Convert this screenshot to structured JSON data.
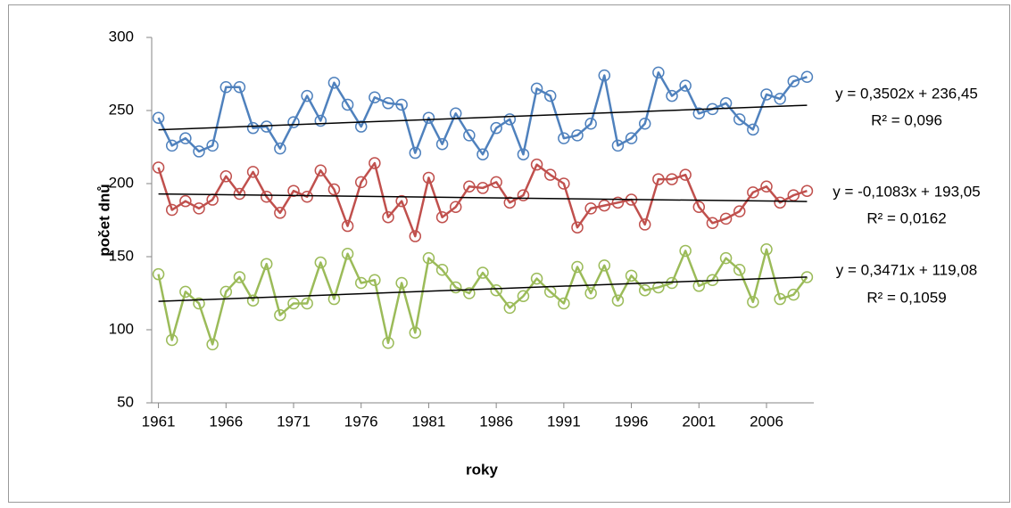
{
  "chart_data": {
    "type": "line",
    "xlabel": "roky",
    "ylabel": "počet dnů",
    "x": [
      1961,
      1962,
      1963,
      1964,
      1965,
      1966,
      1967,
      1968,
      1969,
      1970,
      1971,
      1972,
      1973,
      1974,
      1975,
      1976,
      1977,
      1978,
      1979,
      1980,
      1981,
      1982,
      1983,
      1984,
      1985,
      1986,
      1987,
      1988,
      1989,
      1990,
      1991,
      1992,
      1993,
      1994,
      1995,
      1996,
      1997,
      1998,
      1999,
      2000,
      2001,
      2002,
      2003,
      2004,
      2005,
      2006,
      2007,
      2008,
      2009
    ],
    "xlim": [
      1960.5,
      2009.5
    ],
    "xticks": [
      1961,
      1966,
      1971,
      1976,
      1981,
      1986,
      1991,
      1996,
      2001,
      2006
    ],
    "ylim": [
      50,
      300
    ],
    "yticks": [
      50,
      100,
      150,
      200,
      250,
      300
    ],
    "series": [
      {
        "color": "#4f81bd",
        "values": [
          245,
          226,
          231,
          222,
          226,
          266,
          266,
          238,
          239,
          224,
          242,
          260,
          243,
          269,
          254,
          239,
          259,
          255,
          254,
          221,
          245,
          227,
          248,
          233,
          220,
          238,
          244,
          220,
          265,
          260,
          231,
          233,
          241,
          274,
          226,
          231,
          241,
          276,
          260,
          267,
          248,
          251,
          255,
          244,
          237,
          261,
          258,
          270,
          273
        ],
        "trendline": {
          "slope": 0.3502,
          "intercept": 236.45,
          "label": "y = 0,3502x + 236,45",
          "r2_label": "R² = 0,096"
        }
      },
      {
        "color": "#c0504d",
        "values": [
          211,
          182,
          188,
          183,
          189,
          205,
          193,
          208,
          191,
          180,
          195,
          191,
          209,
          196,
          171,
          201,
          214,
          177,
          188,
          164,
          204,
          177,
          184,
          198,
          197,
          201,
          187,
          192,
          213,
          206,
          200,
          170,
          183,
          185,
          187,
          189,
          172,
          203,
          203,
          206,
          184,
          173,
          176,
          181,
          194,
          198,
          187,
          192,
          195
        ],
        "trendline": {
          "slope": -0.1083,
          "intercept": 193.05,
          "label": "y = -0,1083x + 193,05",
          "r2_label": "R² = 0,0162"
        }
      },
      {
        "color": "#9bbb59",
        "values": [
          138,
          93,
          126,
          118,
          90,
          126,
          136,
          120,
          145,
          110,
          118,
          118,
          146,
          121,
          152,
          132,
          134,
          91,
          132,
          98,
          149,
          141,
          129,
          125,
          139,
          127,
          115,
          123,
          135,
          126,
          118,
          143,
          125,
          144,
          120,
          137,
          127,
          129,
          132,
          154,
          130,
          134,
          149,
          141,
          119,
          155,
          121,
          124,
          136
        ],
        "trendline": {
          "slope": 0.3471,
          "intercept": 119.08,
          "label": "y = 0,3471x + 119,08",
          "r2_label": "R² = 0,1059"
        }
      }
    ]
  }
}
